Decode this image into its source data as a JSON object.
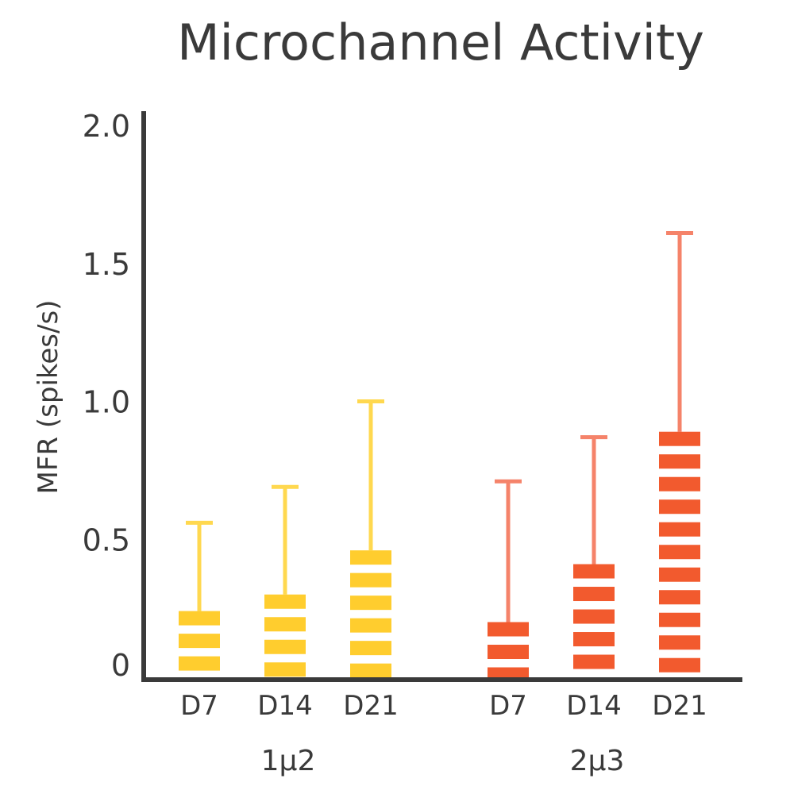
{
  "chart_data": {
    "type": "bar",
    "title": "Microchannel Activity",
    "xlabel": "",
    "ylabel": "MFR (spikes/s)",
    "ylim": [
      0,
      2.0
    ],
    "yticks": [
      "0",
      "0.5",
      "1.0",
      "1.5",
      "2.0"
    ],
    "grid": false,
    "groups": [
      {
        "name": "1μ2",
        "color": "#FFCD2E",
        "error_color": "#FFD84F",
        "categories": [
          "D7",
          "D14",
          "D21"
        ],
        "values": [
          0.24,
          0.3,
          0.46
        ],
        "error_upper": [
          0.56,
          0.69,
          1.0
        ]
      },
      {
        "name": "2μ3",
        "color": "#F25A2E",
        "error_color": "#F5836A",
        "categories": [
          "D7",
          "D14",
          "D21"
        ],
        "values": [
          0.2,
          0.41,
          0.89
        ],
        "error_upper": [
          0.71,
          0.87,
          1.61
        ]
      }
    ]
  }
}
